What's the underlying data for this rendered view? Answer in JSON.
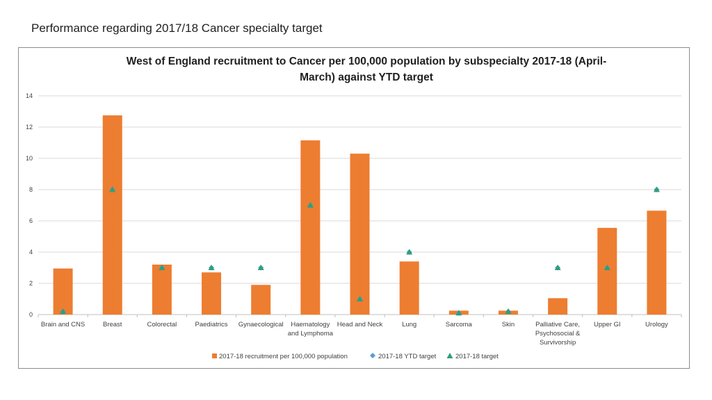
{
  "page_title": "Performance regarding 2017/18 Cancer specialty target",
  "colors": {
    "bar": "#ED7D31",
    "ytd_target": "#5B9BD5",
    "target": "#2E9F7A",
    "grid": "#D9D9D9"
  },
  "chart_data": {
    "type": "bar",
    "title_line1": "West of England recruitment to Cancer per 100,000 population by subspecialty 2017-18 (April-",
    "title_line2": "March) against YTD target",
    "categories": [
      [
        "Brain and  CNS"
      ],
      [
        "Breast"
      ],
      [
        "Colorectal"
      ],
      [
        "Paediatrics"
      ],
      [
        "Gynaecological"
      ],
      [
        "Haematology",
        "and Lymphoma"
      ],
      [
        "Head and Neck"
      ],
      [
        "Lung"
      ],
      [
        "Sarcoma"
      ],
      [
        "Skin"
      ],
      [
        "Palliative Care,",
        "Psychosocial &",
        "Survivorship"
      ],
      [
        "Upper GI"
      ],
      [
        "Urology"
      ]
    ],
    "series": [
      {
        "name": "2017-18 recruitment per 100,000 population",
        "kind": "bar",
        "values": [
          2.95,
          12.75,
          3.2,
          2.7,
          1.9,
          11.15,
          10.3,
          3.4,
          0.25,
          0.25,
          1.05,
          5.55,
          6.65
        ]
      },
      {
        "name": "2017-18 YTD target",
        "kind": "diamond",
        "values": [
          0.2,
          8,
          3,
          3,
          3,
          7,
          1,
          4,
          0.1,
          0.2,
          3,
          3,
          8
        ]
      },
      {
        "name": "2017-18 target",
        "kind": "triangle",
        "values": [
          0.2,
          8,
          3,
          3,
          3,
          7,
          1,
          4,
          0.1,
          0.2,
          3,
          3,
          8
        ]
      }
    ],
    "y_ticks": [
      "0",
      "2",
      "4",
      "6",
      "8",
      "10",
      "12",
      "14"
    ],
    "ylim": [
      0,
      14
    ],
    "legend_position": "bottom"
  }
}
